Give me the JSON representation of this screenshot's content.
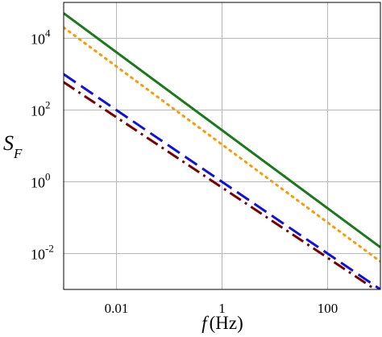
{
  "chart_data": {
    "type": "line",
    "title": "",
    "xlabel": {
      "italic": "f",
      "rest": "(Hz)"
    },
    "ylabel": {
      "main": "S",
      "sub": "F"
    },
    "xscale": "log",
    "yscale": "log",
    "xlim": [
      0.001,
      1000
    ],
    "ylim": [
      0.001,
      100000
    ],
    "grid": true,
    "legend": "none",
    "x_ticks": [
      {
        "value": 0.01,
        "label": "0.01"
      },
      {
        "value": 1,
        "label": "1"
      },
      {
        "value": 100,
        "label": "100"
      }
    ],
    "y_ticks": [
      {
        "value": 10000,
        "base": "10",
        "exp": "4"
      },
      {
        "value": 100,
        "base": "10",
        "exp": "2"
      },
      {
        "value": 1,
        "base": "10",
        "exp": "0"
      },
      {
        "value": 0.01,
        "base": "10",
        "exp": "-2"
      }
    ],
    "series": [
      {
        "color": "#1a7a1a",
        "style": "solid",
        "x": [
          0.001,
          1000
        ],
        "y": [
          50000,
          0.015
        ]
      },
      {
        "color": "#ff9900",
        "style": "dotted",
        "x": [
          0.001,
          1000
        ],
        "y": [
          20000,
          0.006
        ]
      },
      {
        "color": "#1010e0",
        "style": "dashed",
        "x": [
          0.001,
          1000
        ],
        "y": [
          1000,
          0.001
        ]
      },
      {
        "color": "#7a0000",
        "style": "dashdot",
        "x": [
          0.001,
          1000
        ],
        "y": [
          600,
          0.0008
        ]
      }
    ]
  }
}
